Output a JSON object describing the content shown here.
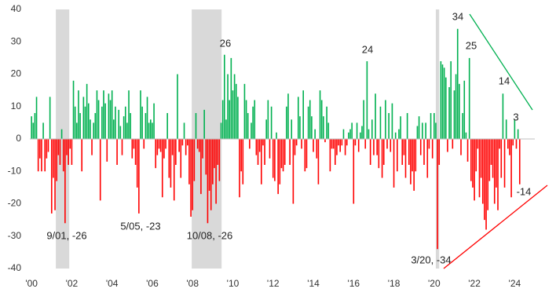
{
  "chart_data": {
    "type": "bar",
    "positive_color": "#00b050",
    "negative_color": "#ff0000",
    "shade_color": "#d9d9d9",
    "shaded_ranges": [
      [
        14.5,
        22.5
      ],
      [
        95.5,
        113.3
      ],
      [
        241,
        243
      ]
    ],
    "xlim": [
      -1,
      300
    ],
    "xticks": [
      {
        "value": 0,
        "label": "'00"
      },
      {
        "value": 24,
        "label": "'02"
      },
      {
        "value": 48,
        "label": "'04"
      },
      {
        "value": 72,
        "label": "'06"
      },
      {
        "value": 96,
        "label": "'08"
      },
      {
        "value": 120,
        "label": "'10"
      },
      {
        "value": 144,
        "label": "'12"
      },
      {
        "value": 168,
        "label": "'14"
      },
      {
        "value": 192,
        "label": "'16"
      },
      {
        "value": 216,
        "label": "'18"
      },
      {
        "value": 240,
        "label": "'20"
      },
      {
        "value": 264,
        "label": "'22"
      },
      {
        "value": 288,
        "label": "'24"
      }
    ],
    "ylim": [
      -40,
      40
    ],
    "yticks": [
      -40,
      -30,
      -20,
      -10,
      0,
      10,
      20,
      30,
      40
    ],
    "annotations": [
      {
        "text": "26"
      },
      {
        "text": "24"
      },
      {
        "text": "34"
      },
      {
        "text": "25"
      },
      {
        "text": "14"
      },
      {
        "text": "3"
      },
      {
        "text": "-14"
      },
      {
        "text": "9/01, -26"
      },
      {
        "text": "5/05, -23"
      },
      {
        "text": "10/08, -26"
      },
      {
        "text": "3/20, -34"
      }
    ],
    "x": [
      0,
      1,
      2,
      3,
      4,
      5,
      6,
      7,
      8,
      9,
      10,
      11,
      12,
      13,
      14,
      15,
      16,
      17,
      18,
      19,
      20,
      21,
      22,
      23,
      24,
      25,
      26,
      27,
      28,
      29,
      30,
      31,
      32,
      33,
      34,
      35,
      36,
      37,
      38,
      39,
      40,
      41,
      42,
      43,
      44,
      45,
      46,
      47,
      48,
      49,
      50,
      51,
      52,
      53,
      54,
      55,
      56,
      57,
      58,
      59,
      60,
      61,
      62,
      63,
      64,
      65,
      66,
      67,
      68,
      69,
      70,
      71,
      72,
      73,
      74,
      75,
      76,
      77,
      78,
      79,
      80,
      81,
      82,
      83,
      84,
      85,
      86,
      87,
      88,
      89,
      90,
      91,
      92,
      93,
      94,
      95,
      96,
      97,
      98,
      99,
      100,
      101,
      102,
      103,
      104,
      105,
      106,
      107,
      108,
      109,
      110,
      111,
      112,
      113,
      114,
      115,
      116,
      117,
      118,
      119,
      120,
      121,
      122,
      123,
      124,
      125,
      126,
      127,
      128,
      129,
      130,
      131,
      132,
      133,
      134,
      135,
      136,
      137,
      138,
      139,
      140,
      141,
      142,
      143,
      144,
      145,
      146,
      147,
      148,
      149,
      150,
      151,
      152,
      153,
      154,
      155,
      156,
      157,
      158,
      159,
      160,
      161,
      162,
      163,
      164,
      165,
      166,
      167,
      168,
      169,
      170,
      171,
      172,
      173,
      174,
      175,
      176,
      177,
      178,
      179,
      180,
      181,
      182,
      183,
      184,
      185,
      186,
      187,
      188,
      189,
      190,
      191,
      192,
      193,
      194,
      195,
      196,
      197,
      198,
      199,
      200,
      201,
      202,
      203,
      204,
      205,
      206,
      207,
      208,
      209,
      210,
      211,
      212,
      213,
      214,
      215,
      216,
      217,
      218,
      219,
      220,
      221,
      222,
      223,
      224,
      225,
      226,
      227,
      228,
      229,
      230,
      231,
      232,
      233,
      234,
      235,
      236,
      237,
      238,
      239,
      240,
      241,
      242,
      243,
      244,
      245,
      246,
      247,
      248,
      249,
      250,
      251,
      252,
      253,
      254,
      255,
      256,
      257,
      258,
      259,
      260,
      261,
      262,
      263,
      264,
      265,
      266,
      267,
      268,
      269,
      270,
      271,
      272,
      273,
      274,
      275,
      276,
      277,
      278,
      279,
      280,
      281,
      282,
      283,
      284,
      285,
      286,
      287,
      288,
      289,
      290,
      291
    ],
    "values": [
      7,
      5,
      8,
      13,
      -10,
      -6,
      -10,
      5,
      -10,
      -6,
      -4,
      13,
      -23,
      -12,
      -22,
      -13,
      -5,
      -8,
      3,
      -10,
      -26,
      -5,
      -8,
      -3,
      -8,
      18,
      10,
      5,
      15,
      8,
      -10,
      13,
      10,
      17,
      11,
      6,
      -5,
      5,
      8,
      15,
      12,
      -19,
      10,
      15,
      11,
      -7,
      14,
      12,
      15,
      6,
      10,
      -8,
      9,
      4,
      -5,
      7,
      10,
      5,
      15,
      8,
      -6,
      -3,
      -8,
      -15,
      -23,
      15,
      10,
      -3,
      8,
      13,
      5,
      6,
      5,
      11,
      -9,
      -5,
      -3,
      -4,
      -18,
      -6,
      -3,
      8,
      -12,
      -15,
      -5,
      -19,
      -8,
      20,
      -4,
      -12,
      -2,
      5,
      -5,
      -2,
      -14,
      -24,
      -22,
      -13,
      8,
      -3,
      -4,
      -17,
      -6,
      9,
      -11,
      -26,
      -16,
      -22,
      -14,
      -9,
      -20,
      -8,
      -13,
      5,
      12,
      26,
      6,
      20,
      12,
      25,
      15,
      20,
      17,
      13,
      -18,
      -10,
      -14,
      17,
      12,
      8,
      -3,
      5,
      10,
      12,
      -5,
      -8,
      -4,
      -14,
      -2,
      -8,
      6,
      12,
      -6,
      10,
      -12,
      -13,
      2,
      -17,
      -14,
      -9,
      -10,
      -8,
      10,
      14,
      -8,
      6,
      -20,
      -5,
      -2,
      13,
      7,
      -3,
      15,
      -10,
      -9,
      10,
      12,
      7,
      -4,
      3,
      -6,
      -14,
      15,
      12,
      7,
      -1,
      10,
      5,
      -10,
      -3,
      -3,
      -8,
      -5,
      -2,
      -4,
      -2,
      3,
      -5,
      -2,
      2,
      3,
      5,
      -20,
      -2,
      5,
      -4,
      2,
      4,
      12,
      -3,
      24,
      3,
      -8,
      6,
      -5,
      14,
      -5,
      -9,
      10,
      -12,
      -8,
      12,
      -3,
      8,
      -4,
      11,
      -15,
      2,
      -10,
      3,
      7,
      -8,
      -5,
      -12,
      8,
      -8,
      -14,
      -10,
      -16,
      -10,
      4,
      7,
      -5,
      5,
      -8,
      5,
      -12,
      -3,
      8,
      -6,
      8,
      5,
      -34,
      -8,
      24,
      23,
      22,
      19,
      -4,
      16,
      24,
      -3,
      15,
      20,
      34,
      17,
      -5,
      8,
      18,
      2,
      -7,
      25,
      -13,
      -15,
      -19,
      -10,
      -3,
      -18,
      -12,
      -20,
      -25,
      -28,
      -22,
      -13,
      -8,
      -12,
      -20,
      -15,
      -22,
      -3,
      -12,
      14,
      -15,
      6,
      -3,
      -5,
      -18,
      -2,
      6,
      -3,
      3,
      -14
    ]
  }
}
